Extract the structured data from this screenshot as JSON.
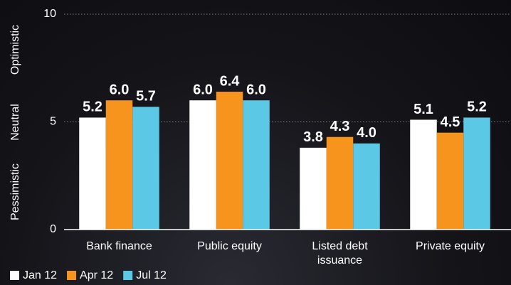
{
  "chart_data": {
    "type": "bar",
    "categories": [
      "Bank finance",
      "Public equity",
      "Listed debt issuance",
      "Private equity"
    ],
    "series": [
      {
        "name": "Jan 12",
        "color": "#ffffff",
        "values": [
          5.2,
          6,
          3.8,
          5.1
        ],
        "value_labels": [
          "5.2",
          "6.0",
          "3.8",
          "5.1"
        ]
      },
      {
        "name": "Apr 12",
        "color": "#f7941d",
        "values": [
          6,
          6.4,
          4.3,
          4.5
        ],
        "value_labels": [
          "6.0",
          "6.4",
          "4.3",
          "4.5"
        ]
      },
      {
        "name": "Jul 12",
        "color": "#5bc8e6",
        "values": [
          5.7,
          6,
          4,
          5.2
        ],
        "value_labels": [
          "5.7",
          "6.0",
          "4.0",
          "5.2"
        ]
      }
    ],
    "side_labels": [
      "Optimistic",
      "Neutral",
      "Pessimistic"
    ],
    "ylim": [
      0,
      10
    ],
    "yticks": [
      0,
      5,
      10
    ],
    "grid": true,
    "legend": "bottom-left"
  }
}
